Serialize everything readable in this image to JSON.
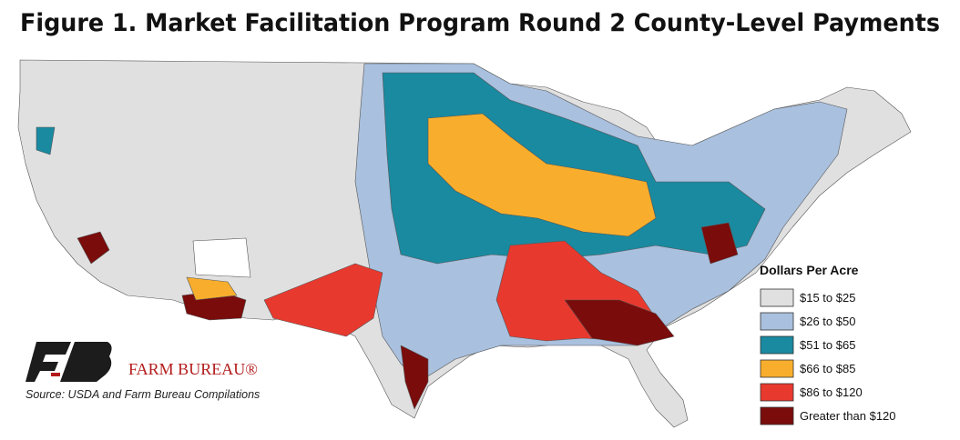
{
  "title": "Figure 1. Market Facilitation Program Round 2 County-Level Payments",
  "legend": {
    "title": "Dollars Per Acre",
    "items": [
      {
        "label": "$15 to $25",
        "color": "#e0e0e0"
      },
      {
        "label": "$26 to $50",
        "color": "#a9c0de"
      },
      {
        "label": "$51 to $65",
        "color": "#1a8aa0"
      },
      {
        "label": "$66 to $85",
        "color": "#f8ae2c"
      },
      {
        "label": "$86 to $120",
        "color": "#e8392f"
      },
      {
        "label": "Greater than $120",
        "color": "#7a0c0c"
      }
    ]
  },
  "logo": {
    "text": "FARM BUREAU®"
  },
  "source": "Source: USDA and Farm Bureau Compilations"
}
